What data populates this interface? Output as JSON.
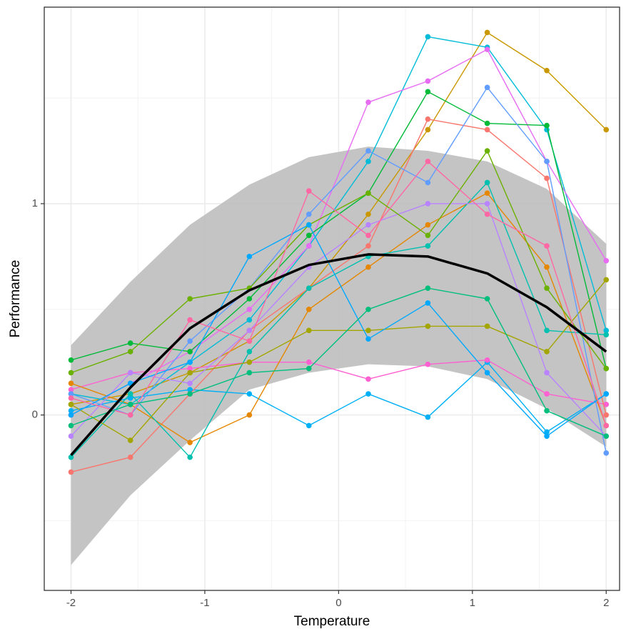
{
  "chart_data": {
    "type": "line",
    "x_label": "Temperature",
    "y_label": "Performance",
    "x": [
      -2,
      -1.556,
      -1.111,
      -0.667,
      -0.222,
      0.222,
      0.667,
      1.111,
      1.556,
      2
    ],
    "xlim": [
      -2.2,
      2.1
    ],
    "ylim": [
      -0.83,
      1.93
    ],
    "xticks": [
      -2,
      -1,
      0,
      1,
      2
    ],
    "yticks": [
      0,
      1
    ],
    "x_minor_grid": [
      -1.5,
      -0.5,
      0.5,
      1.5
    ],
    "y_minor_grid": [
      -0.5,
      0.5,
      1.5
    ],
    "grid": true,
    "band": {
      "color": "#bebebe",
      "upper": [
        0.33,
        0.63,
        0.9,
        1.09,
        1.22,
        1.27,
        1.25,
        1.2,
        1.07,
        0.81
      ],
      "lower": [
        -0.71,
        -0.38,
        -0.12,
        0.12,
        0.2,
        0.24,
        0.23,
        0.17,
        0.03,
        -0.15
      ]
    },
    "mean_line": {
      "color": "#000000",
      "values": [
        -0.19,
        0.13,
        0.41,
        0.59,
        0.71,
        0.76,
        0.75,
        0.67,
        0.51,
        0.3
      ]
    },
    "series": [
      {
        "color": "#C99800",
        "values": [
          0.05,
          0.1,
          0.2,
          0.35,
          0.6,
          0.95,
          1.35,
          1.81,
          1.63,
          1.35
        ]
      },
      {
        "color": "#00BCD8",
        "values": [
          0.1,
          0.05,
          0.25,
          0.45,
          0.8,
          1.2,
          1.79,
          1.74,
          1.35,
          0.4
        ]
      },
      {
        "color": "#00B0F6",
        "values": [
          0.02,
          0.08,
          0.12,
          0.1,
          -0.05,
          0.1,
          -0.01,
          0.25,
          -0.08,
          0.1
        ]
      },
      {
        "color": "#FD61D1",
        "values": [
          0.12,
          0.2,
          0.22,
          0.25,
          0.25,
          0.17,
          0.24,
          0.26,
          0.1,
          0.05
        ]
      },
      {
        "color": "#E76BF3",
        "values": [
          0.0,
          0.15,
          0.3,
          0.5,
          0.8,
          1.48,
          1.58,
          1.73,
          1.2,
          0.73
        ]
      },
      {
        "color": "#00BA38",
        "values": [
          0.26,
          0.34,
          0.3,
          0.55,
          0.85,
          1.05,
          1.53,
          1.38,
          1.37,
          0.22
        ]
      },
      {
        "color": "#F8766D",
        "values": [
          -0.27,
          -0.2,
          0.1,
          0.4,
          0.6,
          0.8,
          1.4,
          1.35,
          1.12,
          0.0
        ]
      },
      {
        "color": "#E58700",
        "values": [
          0.15,
          0.05,
          -0.13,
          0.0,
          0.5,
          0.7,
          0.9,
          1.05,
          0.7,
          -0.05
        ]
      },
      {
        "color": "#00C0AF",
        "values": [
          -0.2,
          0.1,
          -0.2,
          0.3,
          0.6,
          0.75,
          0.8,
          1.1,
          0.4,
          0.38
        ]
      },
      {
        "color": "#A3A500",
        "values": [
          0.05,
          -0.12,
          0.2,
          0.25,
          0.4,
          0.4,
          0.42,
          0.42,
          0.3,
          0.64
        ]
      },
      {
        "color": "#619CFF",
        "values": [
          0.1,
          0.0,
          0.35,
          0.6,
          0.95,
          1.25,
          1.1,
          1.55,
          1.2,
          -0.18
        ]
      },
      {
        "color": "#B983FF",
        "values": [
          -0.1,
          0.2,
          0.15,
          0.4,
          0.7,
          0.9,
          1.0,
          1.0,
          0.2,
          -0.1
        ]
      },
      {
        "color": "#6BB100",
        "values": [
          0.2,
          0.3,
          0.55,
          0.6,
          0.9,
          1.05,
          0.85,
          1.25,
          0.6,
          0.22
        ]
      },
      {
        "color": "#00A9FF",
        "values": [
          0.0,
          0.15,
          0.25,
          0.75,
          0.9,
          0.36,
          0.53,
          0.2,
          -0.1,
          0.1
        ]
      },
      {
        "color": "#FF67A4",
        "values": [
          0.08,
          0.0,
          0.45,
          0.35,
          1.06,
          0.85,
          1.2,
          0.95,
          0.8,
          -0.05
        ]
      },
      {
        "color": "#00BF7D",
        "values": [
          -0.05,
          0.05,
          0.1,
          0.2,
          0.22,
          0.5,
          0.6,
          0.55,
          0.02,
          -0.1
        ]
      }
    ]
  }
}
